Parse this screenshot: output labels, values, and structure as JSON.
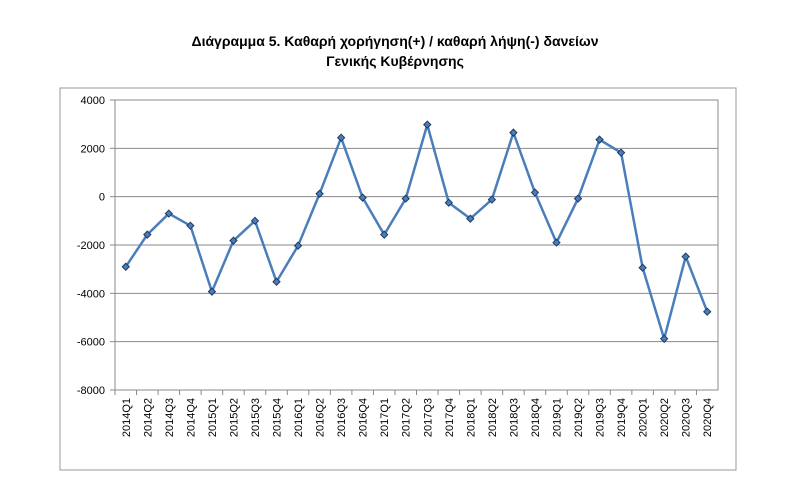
{
  "chart_data": {
    "type": "line",
    "title": [
      "Διάγραμμα 5. Καθαρή χορήγηση(+) / καθαρή λήψη(-) δανείων",
      "Γενικής Κυβέρνησης"
    ],
    "categories": [
      "2014Q1",
      "2014Q2",
      "2014Q3",
      "2014Q4",
      "2015Q1",
      "2015Q2",
      "2015Q3",
      "2015Q4",
      "2016Q1",
      "2016Q2",
      "2016Q3",
      "2016Q4",
      "2017Q1",
      "2017Q2",
      "2017Q3",
      "2017Q4",
      "2018Q1",
      "2018Q2",
      "2018Q3",
      "2018Q4",
      "2019Q1",
      "2019Q2",
      "2019Q3",
      "2019Q4",
      "2020Q1",
      "2020Q2",
      "2020Q3",
      "2020Q4"
    ],
    "values": [
      -2900,
      -1570,
      -700,
      -1200,
      -3930,
      -1820,
      -1000,
      -3520,
      -2030,
      120,
      2440,
      -40,
      -1570,
      -80,
      2980,
      -250,
      -910,
      -120,
      2650,
      170,
      -1900,
      -80,
      2360,
      1820,
      -2940,
      -5880,
      -2480,
      -4760
    ],
    "color": "#4a7ebb",
    "marker_color": "#1f3864",
    "ylim": [
      -8000,
      4000
    ],
    "yticks": [
      -8000,
      -6000,
      -4000,
      -2000,
      0,
      2000,
      4000
    ],
    "grid": true
  }
}
